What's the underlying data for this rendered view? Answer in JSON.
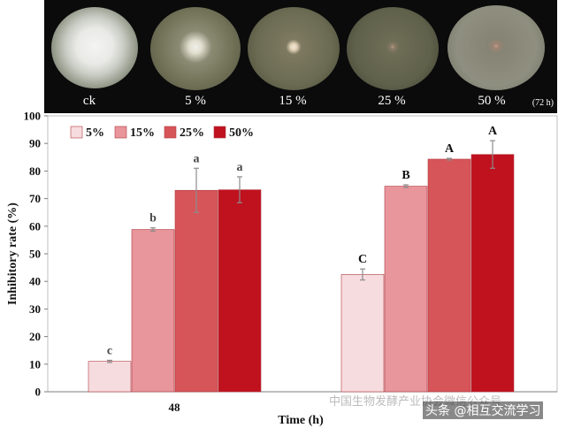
{
  "photo_strip": {
    "labels": [
      "ck",
      "5 %",
      "15 %",
      "25 %",
      "50 %"
    ],
    "time_note": "(72 h)"
  },
  "watermark": "中国生物发酵产业协会微信公众号",
  "credit": "头条 @相互交流学习",
  "chart_data": {
    "type": "bar",
    "categories": [
      "48",
      ""
    ],
    "series": [
      {
        "name": "5%",
        "values": [
          11,
          42.5
        ],
        "errors": [
          0.4,
          2
        ],
        "labels": [
          "c",
          "C"
        ],
        "color": "#f7dcdf"
      },
      {
        "name": "15%",
        "values": [
          58.8,
          74.5
        ],
        "errors": [
          0.6,
          0.5
        ],
        "labels": [
          "b",
          "B"
        ],
        "color": "#e8959b"
      },
      {
        "name": "25%",
        "values": [
          73,
          84.3
        ],
        "errors": [
          8,
          0.3
        ],
        "labels": [
          "a",
          "A"
        ],
        "color": "#d65559"
      },
      {
        "name": "50%",
        "values": [
          73.2,
          86
        ],
        "errors": [
          4.7,
          5
        ],
        "labels": [
          "a",
          "A"
        ],
        "color": "#c0111e"
      }
    ],
    "title": "",
    "xlabel": "Time (h)",
    "ylabel": "Inhibitory rate (%)",
    "ylim": [
      0,
      100
    ],
    "yticks": [
      0,
      10,
      20,
      30,
      40,
      50,
      60,
      70,
      80,
      90,
      100
    ],
    "grid": false,
    "legend": "top-left"
  }
}
